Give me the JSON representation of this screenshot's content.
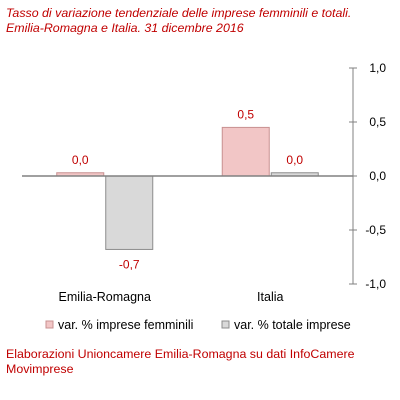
{
  "chart_data": {
    "type": "bar",
    "title_lines": [
      "Tasso di variazione tendenziale delle imprese femminili e totali.",
      "Emilia-Romagna e Italia. 31 dicembre 2016"
    ],
    "categories": [
      "Emilia-Romagna",
      "Italia"
    ],
    "series": [
      {
        "name": "var. % imprese femminili",
        "values": [
          0.03,
          0.45
        ],
        "labels": [
          "0,0",
          "0,5"
        ],
        "fill": "#f2c6c6",
        "stroke": "#c89090"
      },
      {
        "name": "var. % totale imprese",
        "values": [
          -0.68,
          0.03
        ],
        "labels": [
          "-0,7",
          "0,0"
        ],
        "fill": "#d9d9d9",
        "stroke": "#8c8c8c"
      }
    ],
    "yaxis": {
      "position": "right",
      "ylim": [
        -1.0,
        1.0
      ],
      "ticks": [
        1.0,
        0.5,
        0.0,
        -0.5,
        -1.0
      ],
      "tick_labels": [
        "1,0",
        "0,5",
        "0,0",
        "-0,5",
        "-1,0"
      ]
    },
    "legend_position": "bottom",
    "grid": false,
    "label_color": "#c00000"
  },
  "source_note": "Elaborazioni Unioncamere Emilia-Romagna su dati InfoCamere Movimprese"
}
